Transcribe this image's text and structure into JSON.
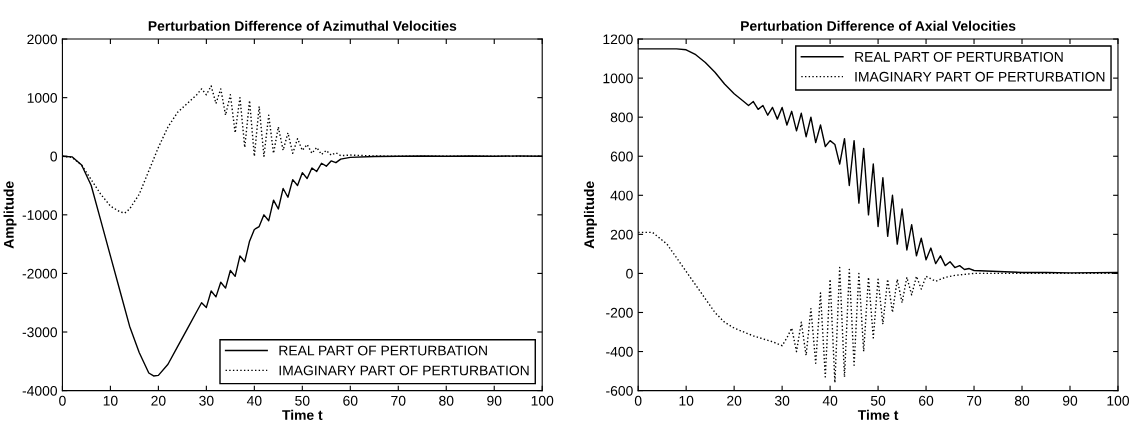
{
  "chart_data": [
    {
      "type": "line",
      "title": "Perturbation Difference of Azimuthal Velocities",
      "xlabel": "Time t",
      "ylabel": "Amplitude",
      "xlim": [
        0,
        100
      ],
      "ylim": [
        -4000,
        2000
      ],
      "xticks": [
        0,
        10,
        20,
        30,
        40,
        50,
        60,
        70,
        80,
        90,
        100
      ],
      "yticks": [
        -4000,
        -3000,
        -2000,
        -1000,
        0,
        1000,
        2000
      ],
      "grid": false,
      "legend": "bottom right",
      "series": [
        {
          "name": "REAL PART OF PERTURBATION",
          "color": "#000000",
          "line_style": "solid",
          "x": [
            0,
            2,
            4,
            6,
            8,
            10,
            12,
            14,
            16,
            18,
            19,
            20,
            22,
            24,
            26,
            28,
            29,
            30,
            31,
            32,
            33,
            34,
            35,
            36,
            37,
            38,
            39,
            40,
            41,
            42,
            43,
            44,
            45,
            46,
            47,
            48,
            49,
            50,
            51,
            52,
            53,
            54,
            55,
            56,
            57,
            58,
            60,
            65,
            70,
            75,
            80,
            85,
            90,
            95,
            100
          ],
          "values": [
            0,
            -10,
            -150,
            -500,
            -1100,
            -1700,
            -2300,
            -2900,
            -3350,
            -3700,
            -3750,
            -3740,
            -3550,
            -3250,
            -2950,
            -2650,
            -2500,
            -2580,
            -2300,
            -2400,
            -2150,
            -2250,
            -1950,
            -2050,
            -1700,
            -1800,
            -1450,
            -1250,
            -1200,
            -1000,
            -1100,
            -750,
            -900,
            -550,
            -700,
            -400,
            -500,
            -280,
            -380,
            -200,
            -260,
            -120,
            -170,
            -80,
            -110,
            -50,
            -20,
            -5,
            0,
            5,
            0,
            5,
            0,
            5,
            0
          ]
        },
        {
          "name": "IMAGINARY PART OF PERTURBATION",
          "color": "#000000",
          "line_style": "dotted",
          "x": [
            0,
            2,
            4,
            6,
            8,
            10,
            12,
            13,
            14,
            16,
            18,
            20,
            22,
            24,
            26,
            28,
            29,
            30,
            31,
            32,
            33,
            34,
            35,
            36,
            37,
            38,
            39,
            40,
            41,
            42,
            43,
            44,
            45,
            46,
            47,
            48,
            49,
            50,
            51,
            52,
            53,
            54,
            55,
            56,
            57,
            58,
            60,
            65,
            70,
            100
          ],
          "values": [
            0,
            -20,
            -150,
            -400,
            -650,
            -850,
            -950,
            -970,
            -900,
            -650,
            -250,
            150,
            500,
            750,
            900,
            1050,
            1150,
            1050,
            1200,
            900,
            1150,
            700,
            1050,
            400,
            1000,
            150,
            950,
            0,
            850,
            0,
            700,
            50,
            500,
            100,
            400,
            50,
            300,
            100,
            200,
            50,
            150,
            30,
            100,
            20,
            60,
            10,
            20,
            5,
            0,
            0
          ]
        }
      ]
    },
    {
      "type": "line",
      "title": "Perturbation Difference of Axial Velocities",
      "xlabel": "Time t",
      "ylabel": "Amplitude",
      "xlim": [
        0,
        100
      ],
      "ylim": [
        -600,
        1200
      ],
      "xticks": [
        0,
        10,
        20,
        30,
        40,
        50,
        60,
        70,
        80,
        90,
        100
      ],
      "yticks": [
        -600,
        -400,
        -200,
        0,
        200,
        400,
        600,
        800,
        1000,
        1200
      ],
      "grid": false,
      "legend": "top right",
      "series": [
        {
          "name": "REAL PART OF PERTURBATION",
          "color": "#000000",
          "line_style": "solid",
          "x": [
            0,
            8,
            10,
            12,
            14,
            16,
            18,
            20,
            22,
            23,
            24,
            25,
            26,
            27,
            28,
            29,
            30,
            31,
            32,
            33,
            34,
            35,
            36,
            37,
            38,
            39,
            40,
            41,
            42,
            43,
            44,
            45,
            46,
            47,
            48,
            49,
            50,
            51,
            52,
            53,
            54,
            55,
            56,
            57,
            58,
            59,
            60,
            61,
            62,
            63,
            64,
            65,
            66,
            67,
            68,
            69,
            70,
            75,
            80,
            85,
            90,
            100
          ],
          "values": [
            1150,
            1150,
            1145,
            1120,
            1080,
            1030,
            970,
            920,
            880,
            860,
            880,
            840,
            860,
            810,
            850,
            790,
            850,
            760,
            830,
            730,
            820,
            700,
            800,
            670,
            760,
            650,
            680,
            660,
            560,
            690,
            450,
            680,
            360,
            640,
            300,
            560,
            240,
            490,
            190,
            400,
            150,
            330,
            120,
            250,
            90,
            180,
            70,
            130,
            50,
            90,
            40,
            60,
            30,
            40,
            20,
            25,
            15,
            10,
            5,
            5,
            3,
            5
          ]
        },
        {
          "name": "IMAGINARY PART OF PERTURBATION",
          "color": "#000000",
          "line_style": "dotted",
          "x": [
            0,
            3,
            6,
            8,
            10,
            12,
            14,
            16,
            18,
            20,
            24,
            28,
            30,
            31,
            32,
            33,
            34,
            35,
            36,
            37,
            38,
            39,
            40,
            41,
            42,
            43,
            44,
            45,
            46,
            47,
            48,
            49,
            50,
            51,
            52,
            53,
            54,
            55,
            56,
            57,
            58,
            59,
            60,
            62,
            64,
            66,
            68,
            70,
            100
          ],
          "values": [
            210,
            210,
            150,
            80,
            10,
            -60,
            -130,
            -200,
            -250,
            -280,
            -320,
            -350,
            -370,
            -330,
            -280,
            -400,
            -250,
            -420,
            -180,
            -460,
            -100,
            -530,
            -30,
            -560,
            30,
            -530,
            20,
            -470,
            0,
            -400,
            -20,
            -330,
            -30,
            -260,
            -30,
            -200,
            -30,
            -150,
            -20,
            -110,
            -15,
            -80,
            -15,
            -40,
            -20,
            -10,
            -5,
            0,
            0
          ]
        }
      ]
    }
  ]
}
